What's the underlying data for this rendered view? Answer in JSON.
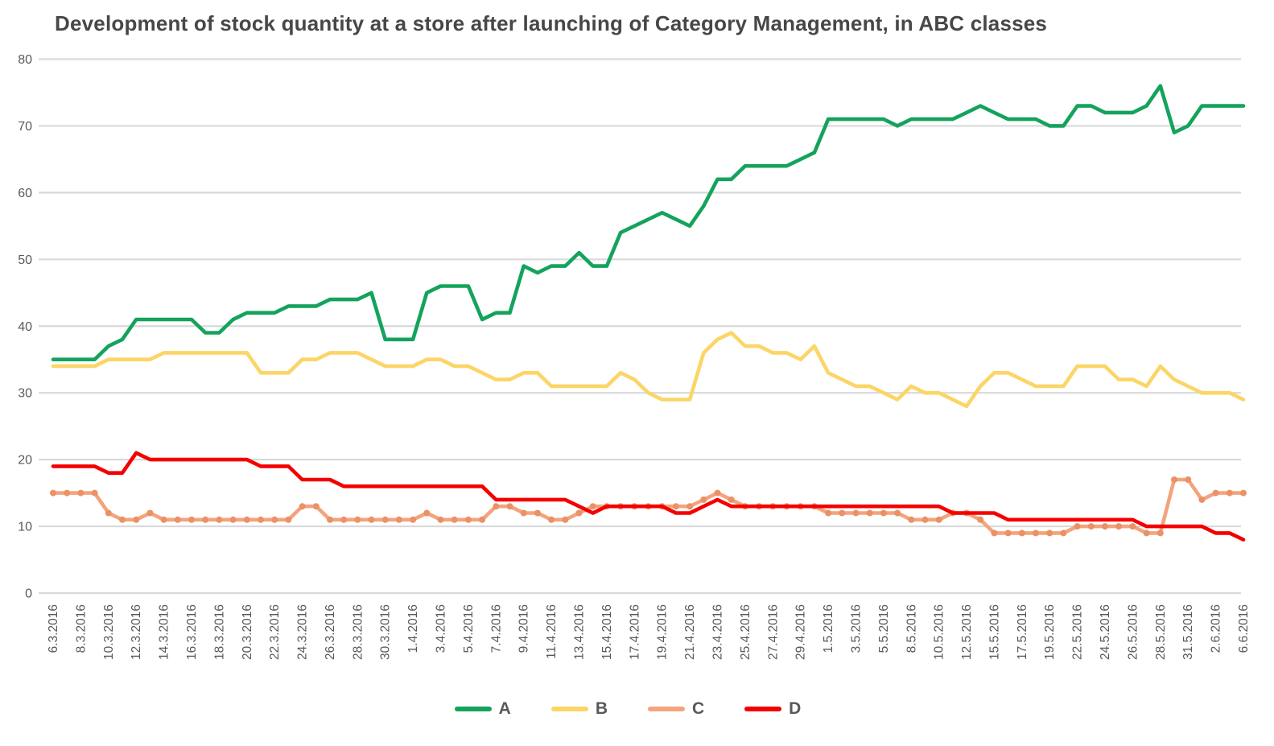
{
  "title": "Development of stock quantity at a store after launching of Category Management, in ABC classes",
  "colors": {
    "grid": "#d9d9d9",
    "axis_text": "#595959",
    "title_text": "#474747",
    "series_A": "#14a35c",
    "series_B": "#fbd566",
    "series_C": "#f3a47e",
    "series_C_marker": "#ea9166",
    "series_D": "#f40000"
  },
  "chart_data": {
    "type": "line",
    "title": "Development of stock quantity at a store after launching of Category Management, in ABC classes",
    "xlabel": "",
    "ylabel": "",
    "ylim": [
      0,
      80
    ],
    "y_ticks": [
      0,
      10,
      20,
      30,
      40,
      50,
      60,
      70,
      80
    ],
    "grid": "horizontal",
    "legend_position": "bottom",
    "x_labels_note": "dates shown on every 2nd data point; 87 data points total",
    "x_tick_labels": [
      "6.3.2016",
      "8.3.2016",
      "10.3.2016",
      "12.3.2016",
      "14.3.2016",
      "16.3.2016",
      "18.3.2016",
      "20.3.2016",
      "22.3.2016",
      "24.3.2016",
      "26.3.2016",
      "28.3.2016",
      "30.3.2016",
      "1.4.2016",
      "3.4.2016",
      "5.4.2016",
      "7.4.2016",
      "9.4.2016",
      "11.4.2016",
      "13.4.2016",
      "15.4.2016",
      "17.4.2016",
      "19.4.2016",
      "21.4.2016",
      "23.4.2016",
      "25.4.2016",
      "27.4.2016",
      "29.4.2016",
      "1.5.2016",
      "3.5.2016",
      "5.5.2016",
      "8.5.2016",
      "10.5.2016",
      "12.5.2016",
      "15.5.2016",
      "17.5.2016",
      "19.5.2016",
      "22.5.2016",
      "24.5.2016",
      "26.5.2016",
      "28.5.2016",
      "31.5.2016",
      "2.6.2016",
      "6.6.2016"
    ],
    "series": [
      {
        "name": "A",
        "color": "#14a35c",
        "markers": false,
        "values": [
          35,
          35,
          35,
          35,
          37,
          38,
          41,
          41,
          41,
          41,
          41,
          39,
          39,
          41,
          42,
          42,
          42,
          43,
          43,
          43,
          44,
          44,
          44,
          45,
          38,
          38,
          38,
          45,
          46,
          46,
          46,
          41,
          42,
          42,
          49,
          48,
          49,
          49,
          51,
          49,
          49,
          54,
          55,
          56,
          57,
          56,
          55,
          58,
          62,
          62,
          64,
          64,
          64,
          64,
          65,
          66,
          71,
          71,
          71,
          71,
          71,
          70,
          71,
          71,
          71,
          71,
          72,
          73,
          72,
          71,
          71,
          71,
          70,
          70,
          73,
          73,
          72,
          72,
          72,
          73,
          76,
          69,
          70,
          73,
          73,
          73,
          73
        ]
      },
      {
        "name": "B",
        "color": "#fbd566",
        "markers": false,
        "values": [
          34,
          34,
          34,
          34,
          35,
          35,
          35,
          35,
          36,
          36,
          36,
          36,
          36,
          36,
          36,
          33,
          33,
          33,
          35,
          35,
          36,
          36,
          36,
          35,
          34,
          34,
          34,
          35,
          35,
          34,
          34,
          33,
          32,
          32,
          33,
          33,
          31,
          31,
          31,
          31,
          31,
          33,
          32,
          30,
          29,
          29,
          29,
          36,
          38,
          39,
          37,
          37,
          36,
          36,
          35,
          37,
          33,
          32,
          31,
          31,
          30,
          29,
          31,
          30,
          30,
          29,
          28,
          31,
          33,
          33,
          32,
          31,
          31,
          31,
          34,
          34,
          34,
          32,
          32,
          31,
          34,
          32,
          31,
          30,
          30,
          30,
          29
        ]
      },
      {
        "name": "C",
        "color": "#f3a47e",
        "markers": true,
        "marker_color": "#ea9166",
        "values": [
          15,
          15,
          15,
          15,
          12,
          11,
          11,
          12,
          11,
          11,
          11,
          11,
          11,
          11,
          11,
          11,
          11,
          11,
          13,
          13,
          11,
          11,
          11,
          11,
          11,
          11,
          11,
          12,
          11,
          11,
          11,
          11,
          13,
          13,
          12,
          12,
          11,
          11,
          12,
          13,
          13,
          13,
          13,
          13,
          13,
          13,
          13,
          14,
          15,
          14,
          13,
          13,
          13,
          13,
          13,
          13,
          12,
          12,
          12,
          12,
          12,
          12,
          11,
          11,
          11,
          12,
          12,
          11,
          9,
          9,
          9,
          9,
          9,
          9,
          10,
          10,
          10,
          10,
          10,
          9,
          9,
          17,
          17,
          14,
          15,
          15,
          15
        ]
      },
      {
        "name": "D",
        "color": "#f40000",
        "markers": false,
        "values": [
          19,
          19,
          19,
          19,
          18,
          18,
          21,
          20,
          20,
          20,
          20,
          20,
          20,
          20,
          20,
          19,
          19,
          19,
          17,
          17,
          17,
          16,
          16,
          16,
          16,
          16,
          16,
          16,
          16,
          16,
          16,
          16,
          14,
          14,
          14,
          14,
          14,
          14,
          13,
          12,
          13,
          13,
          13,
          13,
          13,
          12,
          12,
          13,
          14,
          13,
          13,
          13,
          13,
          13,
          13,
          13,
          13,
          13,
          13,
          13,
          13,
          13,
          13,
          13,
          13,
          12,
          12,
          12,
          12,
          11,
          11,
          11,
          11,
          11,
          11,
          11,
          11,
          11,
          11,
          10,
          10,
          10,
          10,
          10,
          9,
          9,
          8
        ]
      }
    ]
  },
  "legend": {
    "items": [
      {
        "label": "A",
        "color": "#14a35c"
      },
      {
        "label": "B",
        "color": "#fbd566"
      },
      {
        "label": "C",
        "color": "#f3a47e"
      },
      {
        "label": "D",
        "color": "#f40000"
      }
    ]
  }
}
